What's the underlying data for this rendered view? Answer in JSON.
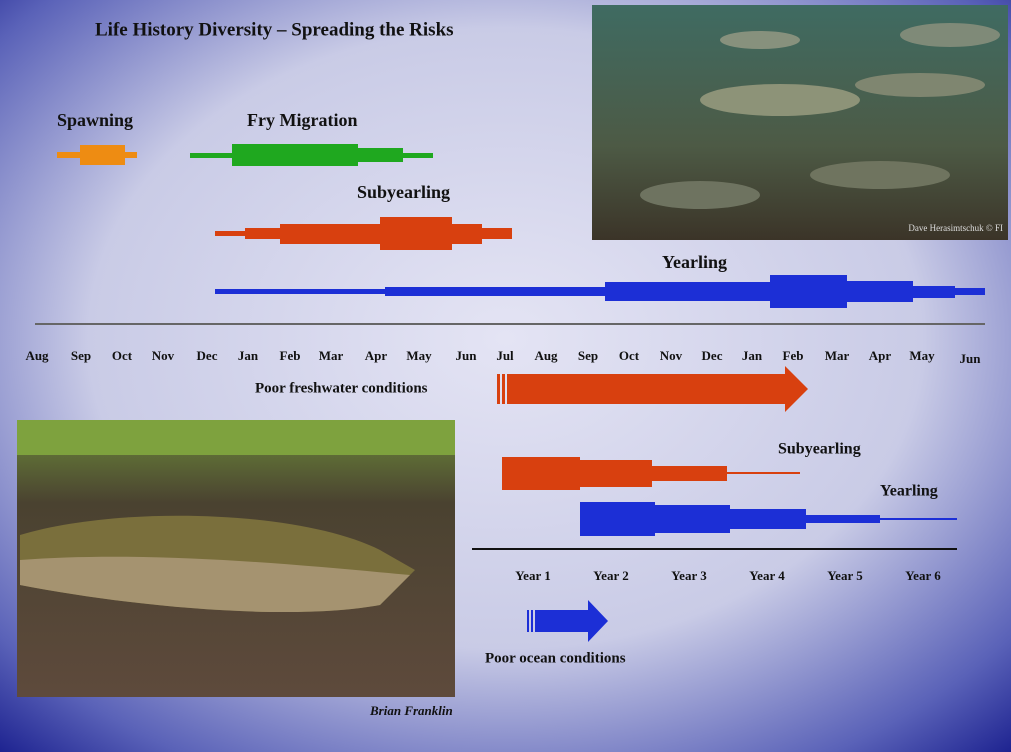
{
  "title": "Life History Diversity – Spreading the Risks",
  "freshwater": {
    "labels": [
      "Spawning",
      "Fry Migration",
      "Subyearling",
      "Yearling"
    ],
    "months": [
      "Aug",
      "Sep",
      "Oct",
      "Nov",
      "Dec",
      "Jan",
      "Feb",
      "Mar",
      "Apr",
      "May",
      "Jun",
      "Jul",
      "Aug",
      "Sep",
      "Oct",
      "Nov",
      "Dec",
      "Jan",
      "Feb",
      "Mar",
      "Apr",
      "May",
      "Jun"
    ],
    "arrow_label": "Poor freshwater conditions"
  },
  "ocean": {
    "labels": [
      "Subyearling",
      "Yearling"
    ],
    "years": [
      "Year 1",
      "Year 2",
      "Year 3",
      "Year 4",
      "Year 5",
      "Year 6"
    ],
    "arrow_label": "Poor ocean conditions"
  },
  "photos": {
    "top_credit": "Dave Herasimtschuk © FI",
    "bottom_credit": "Brian Franklin"
  }
}
